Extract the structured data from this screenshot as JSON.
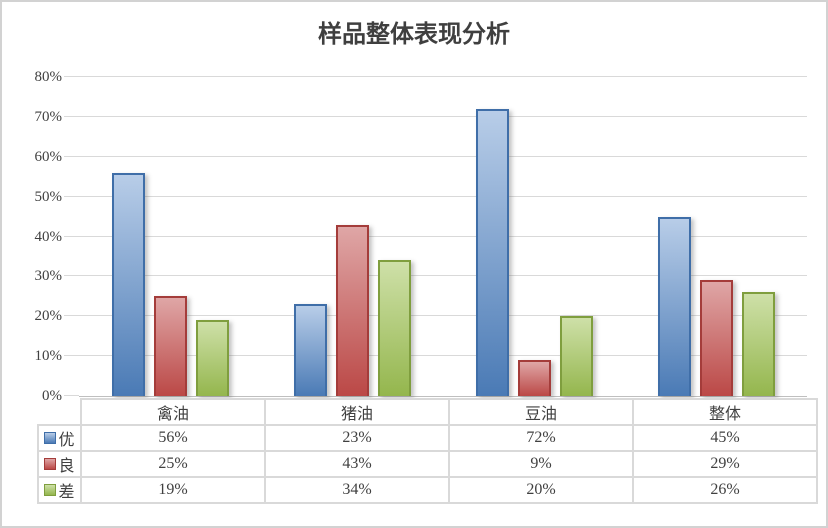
{
  "chart_data": {
    "type": "bar",
    "title": "样品整体表现分析",
    "categories": [
      "禽油",
      "猪油",
      "豆油",
      "整体"
    ],
    "series": [
      {
        "name": "优",
        "key": "excellent",
        "values": [
          56,
          23,
          72,
          45
        ],
        "color": "#4F81BD",
        "border_color": "#3F6EA8",
        "gradient_top": "#B8CDE8",
        "gradient_bottom": "#4A7AB5"
      },
      {
        "name": "良",
        "key": "good",
        "values": [
          25,
          43,
          9,
          29
        ],
        "color": "#C0504D",
        "border_color": "#A43C3A",
        "gradient_top": "#DFA6A6",
        "gradient_bottom": "#BB4846"
      },
      {
        "name": "差",
        "key": "poor",
        "values": [
          19,
          34,
          20,
          26
        ],
        "color": "#9BBB59",
        "border_color": "#7F9E3E",
        "gradient_top": "#CEE0A8",
        "gradient_bottom": "#94B64D"
      }
    ],
    "value_suffix": "%",
    "xlabel": "",
    "ylabel": "",
    "ylim": [
      0,
      80
    ],
    "y_ticks": [
      "0%",
      "10%",
      "20%",
      "30%",
      "40%",
      "50%",
      "60%",
      "70%",
      "80%"
    ],
    "grid": true,
    "legend_position": "table-left"
  },
  "styles": {
    "grid_color": "#D9D9D9",
    "axis_color": "#BFBFBF",
    "text_color": "#404040",
    "outer_border_color": "#D2D2D2",
    "background": "#FFFFFF"
  }
}
